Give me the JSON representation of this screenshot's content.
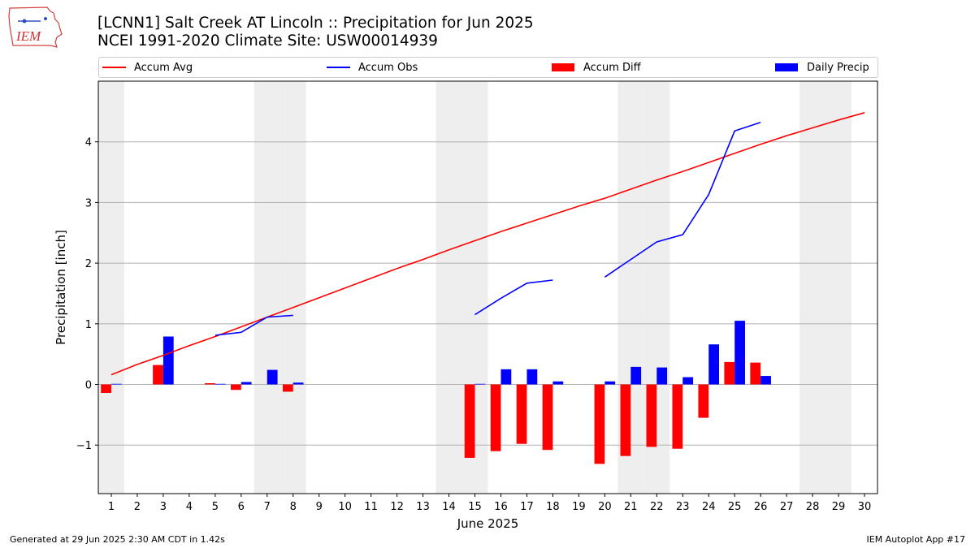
{
  "header": {
    "line1": "[LCNN1] Salt Creek  AT Lincoln :: Precipitation for Jun 2025",
    "line2": "NCEI 1991-2020 Climate Site: USW00014939"
  },
  "logo": {
    "text": "IEM"
  },
  "legend": {
    "accum_avg": "Accum Avg",
    "accum_obs": "Accum Obs",
    "accum_diff": "Accum Diff",
    "daily_precip": "Daily Precip"
  },
  "colors": {
    "avg": "#ff0000",
    "obs": "#0000ff",
    "diff": "#ff0000",
    "daily": "#0000ff",
    "weekend": "#eeeeee"
  },
  "footer": {
    "left": "Generated at 29 Jun 2025 2:30 AM CDT in 1.42s",
    "right": "IEM Autoplot App #17"
  },
  "chart_data": {
    "type": "bar",
    "xlabel": "June 2025",
    "ylabel": "Precipitation [inch]",
    "x": [
      1,
      2,
      3,
      4,
      5,
      6,
      7,
      8,
      9,
      10,
      11,
      12,
      13,
      14,
      15,
      16,
      17,
      18,
      19,
      20,
      21,
      22,
      23,
      24,
      25,
      26,
      27,
      28,
      29,
      30
    ],
    "xlim": [
      0.5,
      30.5
    ],
    "ylim": [
      -1.8,
      5.0
    ],
    "yticks": [
      -1,
      0,
      1,
      2,
      3,
      4
    ],
    "ytick_labels": [
      "−1",
      "0",
      "1",
      "2",
      "3",
      "4"
    ],
    "grid": "y",
    "weekend_days": [
      1,
      7,
      8,
      14,
      15,
      21,
      22,
      28,
      29
    ],
    "series": [
      {
        "name": "Accum Avg",
        "kind": "line",
        "values": [
          0.16,
          0.33,
          0.48,
          0.64,
          0.79,
          0.95,
          1.11,
          1.27,
          1.43,
          1.59,
          1.75,
          1.91,
          2.06,
          2.22,
          2.37,
          2.52,
          2.66,
          2.8,
          2.94,
          3.07,
          3.22,
          3.37,
          3.51,
          3.66,
          3.81,
          3.96,
          4.1,
          4.23,
          4.36,
          4.48
        ]
      },
      {
        "name": "Accum Obs",
        "kind": "line",
        "values": [
          null,
          null,
          null,
          null,
          0.81,
          0.86,
          1.11,
          1.14,
          null,
          null,
          null,
          null,
          null,
          null,
          1.15,
          1.42,
          1.67,
          1.72,
          null,
          1.77,
          2.06,
          2.35,
          2.47,
          3.13,
          4.18,
          4.32,
          null,
          null,
          null,
          null
        ]
      },
      {
        "name": "Accum Diff",
        "kind": "bar",
        "values": [
          -0.14,
          0,
          0.32,
          0,
          0.02,
          -0.09,
          0.0,
          -0.12,
          null,
          null,
          null,
          null,
          null,
          null,
          -1.21,
          -1.1,
          -0.98,
          -1.08,
          null,
          -1.31,
          -1.18,
          -1.03,
          -1.06,
          -0.55,
          0.37,
          0.36,
          null,
          null,
          null,
          null
        ]
      },
      {
        "name": "Daily Precip",
        "kind": "bar",
        "values": [
          0.01,
          0,
          0.79,
          0,
          0.01,
          0.04,
          0.24,
          0.03,
          null,
          null,
          null,
          null,
          null,
          null,
          0.01,
          0.25,
          0.25,
          0.05,
          null,
          0.05,
          0.29,
          0.28,
          0.12,
          0.66,
          1.05,
          0.14,
          null,
          null,
          null,
          null
        ]
      }
    ]
  }
}
